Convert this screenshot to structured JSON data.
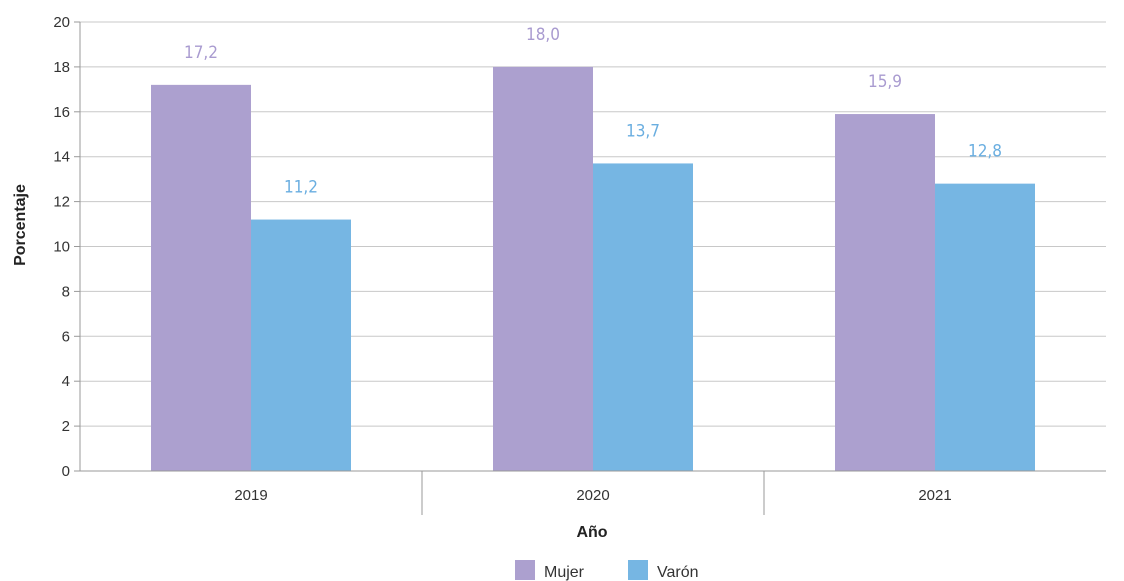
{
  "chart_data": {
    "type": "bar",
    "categories": [
      "2019",
      "2020",
      "2021"
    ],
    "series": [
      {
        "name": "Mujer",
        "values": [
          17.2,
          18.0,
          15.9
        ],
        "labels": [
          "17,2",
          "18,0",
          "15,9"
        ],
        "color": "#aca0cf",
        "label_color": "#a99bd0"
      },
      {
        "name": "Varón",
        "values": [
          11.2,
          13.7,
          12.8
        ],
        "labels": [
          "11,2",
          "13,7",
          "12,8"
        ],
        "color": "#76b6e3",
        "label_color": "#6aaee0"
      }
    ],
    "xlabel": "Año",
    "ylabel": "Porcentaje",
    "ylim": [
      0,
      20
    ],
    "yticks": [
      0,
      2,
      4,
      6,
      8,
      10,
      12,
      14,
      16,
      18,
      20
    ],
    "grid": true,
    "legend_position": "bottom-center",
    "colors": {
      "grid": "#c8c8c8",
      "axis": "#999999",
      "text": "#333333"
    }
  }
}
